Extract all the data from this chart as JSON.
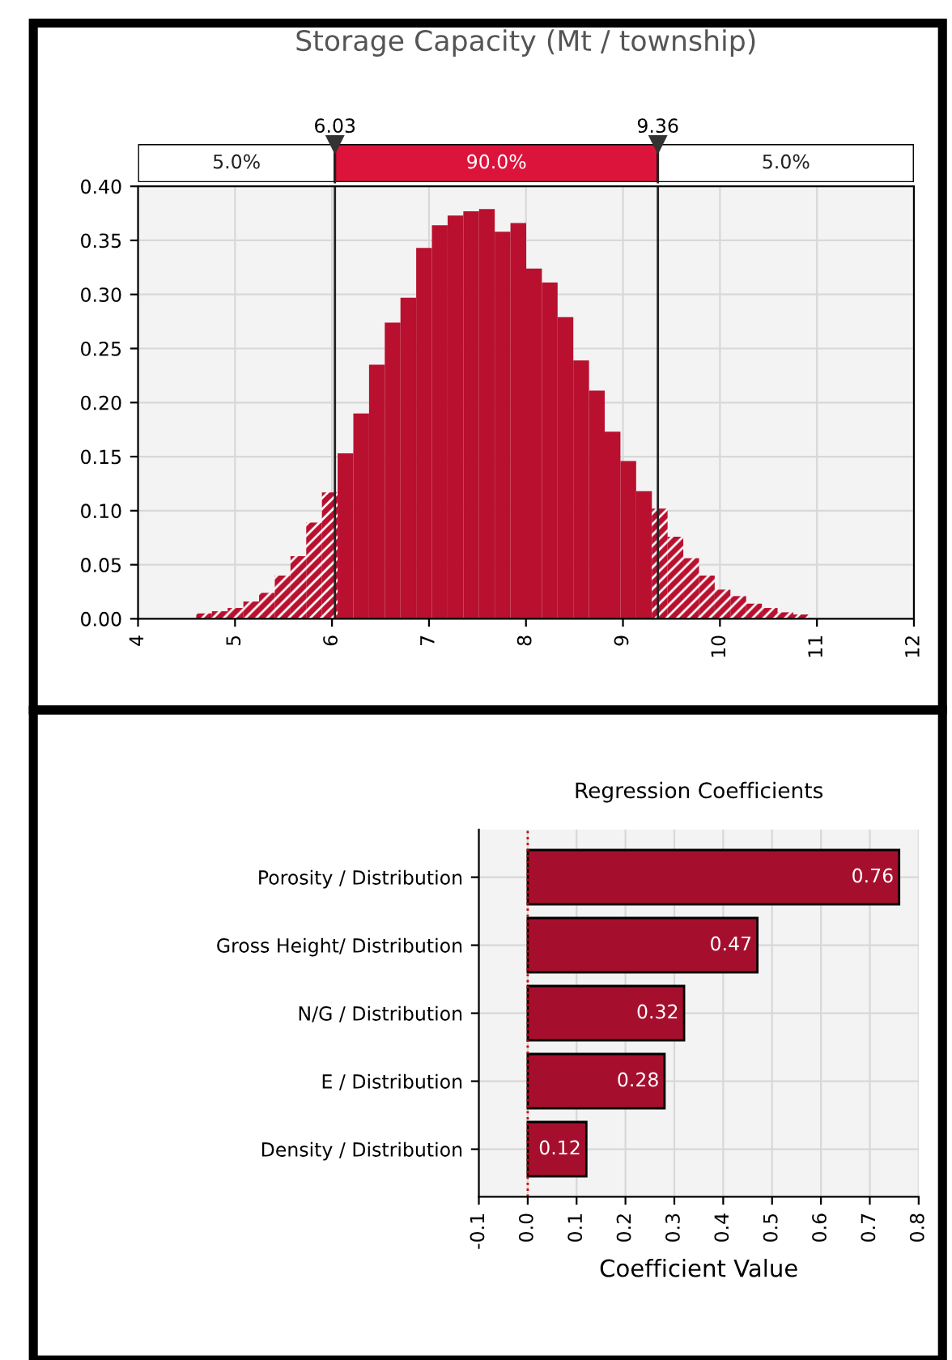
{
  "chart_data": [
    {
      "type": "histogram",
      "title": "Storage Capacity (Mt / township)",
      "bins": [
        4.6,
        4.762,
        4.924,
        5.086,
        5.248,
        5.41,
        5.572,
        5.734,
        5.896,
        6.058,
        6.22,
        6.382,
        6.544,
        6.706,
        6.868,
        7.03,
        7.192,
        7.354,
        7.516,
        7.678,
        7.84,
        8.002,
        8.164,
        8.326,
        8.488,
        8.65,
        8.812,
        8.974,
        9.136,
        9.298,
        9.46,
        9.622,
        9.784,
        9.946,
        10.108,
        10.27,
        10.432,
        10.594,
        10.756,
        10.918
      ],
      "values": [
        0.005,
        0.007,
        0.01,
        0.016,
        0.024,
        0.04,
        0.058,
        0.089,
        0.117,
        0.153,
        0.19,
        0.235,
        0.274,
        0.297,
        0.343,
        0.364,
        0.373,
        0.377,
        0.379,
        0.358,
        0.366,
        0.324,
        0.311,
        0.279,
        0.239,
        0.211,
        0.173,
        0.146,
        0.118,
        0.102,
        0.076,
        0.056,
        0.04,
        0.027,
        0.021,
        0.014,
        0.01,
        0.006,
        0.004
      ],
      "color": "#b8102e",
      "xlim": [
        4,
        12
      ],
      "xticks": [
        4,
        5,
        6,
        7,
        8,
        9,
        10,
        11,
        12
      ],
      "ylim": [
        0,
        0.4
      ],
      "yticks": [
        {
          "value": 0,
          "label": "0.00"
        },
        {
          "value": 0.05,
          "label": "0.05"
        },
        {
          "value": 0.1,
          "label": "0.10"
        },
        {
          "value": 0.15,
          "label": "0.15"
        },
        {
          "value": 0.2,
          "label": "0.20"
        },
        {
          "value": 0.25,
          "label": "0.25"
        },
        {
          "value": 0.3,
          "label": "0.30"
        },
        {
          "value": 0.35,
          "label": "0.35"
        },
        {
          "value": 0.4,
          "label": "0.40"
        }
      ],
      "ref_lines": [
        {
          "axis": "x",
          "value": 6.03,
          "label": "6.03",
          "color": "#222222"
        },
        {
          "axis": "x",
          "value": 9.36,
          "label": "9.36",
          "color": "#222222"
        }
      ],
      "annotations": [
        "5.0%",
        "90.0%",
        "5.0%"
      ],
      "grid": true
    },
    {
      "type": "bar",
      "orientation": "horizontal",
      "title": "Regression Coefficients",
      "xlabel": "Coefficient Value",
      "categories": [
        "Porosity / Distribution",
        "Gross Height/ Distribution",
        "N/G / Distribution",
        "E / Distribution",
        "Density / Distribution"
      ],
      "values": [
        0.76,
        0.47,
        0.32,
        0.28,
        0.12
      ],
      "color": "#a50f2d",
      "data_labels": true,
      "xlim": [
        -0.1,
        0.8
      ],
      "xticks": [
        {
          "value": -0.1,
          "label": "-0.1"
        },
        {
          "value": 0,
          "label": "0.0"
        },
        {
          "value": 0.1,
          "label": "0.1"
        },
        {
          "value": 0.2,
          "label": "0.2"
        },
        {
          "value": 0.3,
          "label": "0.3"
        },
        {
          "value": 0.4,
          "label": "0.4"
        },
        {
          "value": 0.5,
          "label": "0.5"
        },
        {
          "value": 0.6,
          "label": "0.6"
        },
        {
          "value": 0.7,
          "label": "0.7"
        },
        {
          "value": 0.8,
          "label": "0.8"
        }
      ],
      "ref_lines": [
        {
          "axis": "x",
          "value": 0,
          "color": "#cc0000",
          "line_style": "dotted"
        }
      ],
      "grid": true
    }
  ]
}
